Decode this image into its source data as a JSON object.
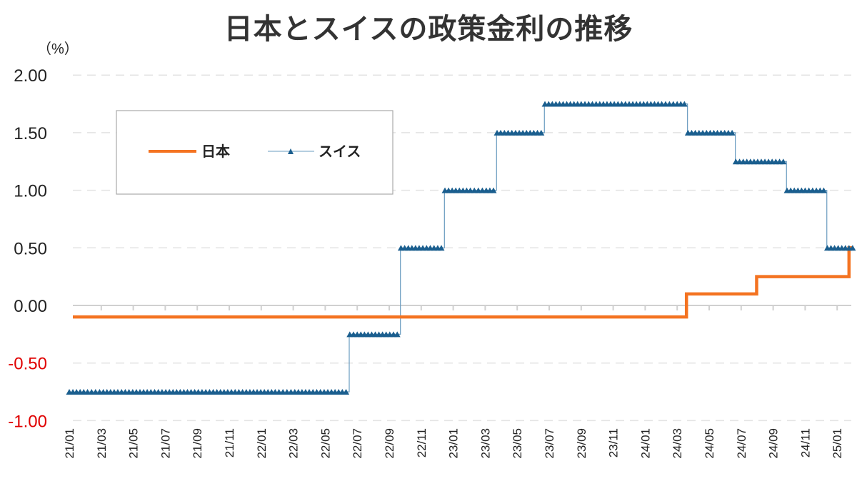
{
  "chart_data": {
    "type": "line",
    "title": "日本とスイスの政策金利の推移",
    "ylabel": "（%）",
    "ylim": [
      -1.0,
      2.0
    ],
    "yticks": [
      "2.00",
      "1.50",
      "1.00",
      "0.50",
      "0.00",
      "-0.50",
      "-1.00"
    ],
    "ytick_values": [
      2.0,
      1.5,
      1.0,
      0.5,
      0.0,
      -0.5,
      -1.0
    ],
    "negative_tick_color": "#E00000",
    "xlim": [
      "2021-01-01",
      "2025-01-31"
    ],
    "xticks": [
      "21/01",
      "21/03",
      "21/05",
      "21/07",
      "21/09",
      "21/11",
      "22/01",
      "22/03",
      "22/05",
      "22/07",
      "22/09",
      "22/11",
      "23/01",
      "23/03",
      "23/05",
      "23/07",
      "23/09",
      "23/11",
      "24/01",
      "24/03",
      "24/05",
      "24/07",
      "24/09",
      "24/11",
      "25/01"
    ],
    "grid": "horizontal dashed",
    "legend": "top-left",
    "series": [
      {
        "name": "日本",
        "color": "#F47321",
        "style": "step line",
        "steps": [
          [
            "2021-01-01",
            -0.1
          ],
          [
            "2024-03-19",
            0.1
          ],
          [
            "2024-07-31",
            0.25
          ],
          [
            "2025-01-24",
            0.5
          ]
        ]
      },
      {
        "name": "スイス",
        "color": "#1A5E8E",
        "style": "step line with triangle markers (weekly)",
        "steps": [
          [
            "2021-01-01",
            -0.75
          ],
          [
            "2022-06-16",
            -0.25
          ],
          [
            "2022-09-22",
            0.5
          ],
          [
            "2022-12-15",
            1.0
          ],
          [
            "2023-03-23",
            1.5
          ],
          [
            "2023-06-22",
            1.75
          ],
          [
            "2024-03-21",
            1.5
          ],
          [
            "2024-06-20",
            1.25
          ],
          [
            "2024-09-26",
            1.0
          ],
          [
            "2024-12-12",
            0.5
          ]
        ]
      }
    ]
  }
}
